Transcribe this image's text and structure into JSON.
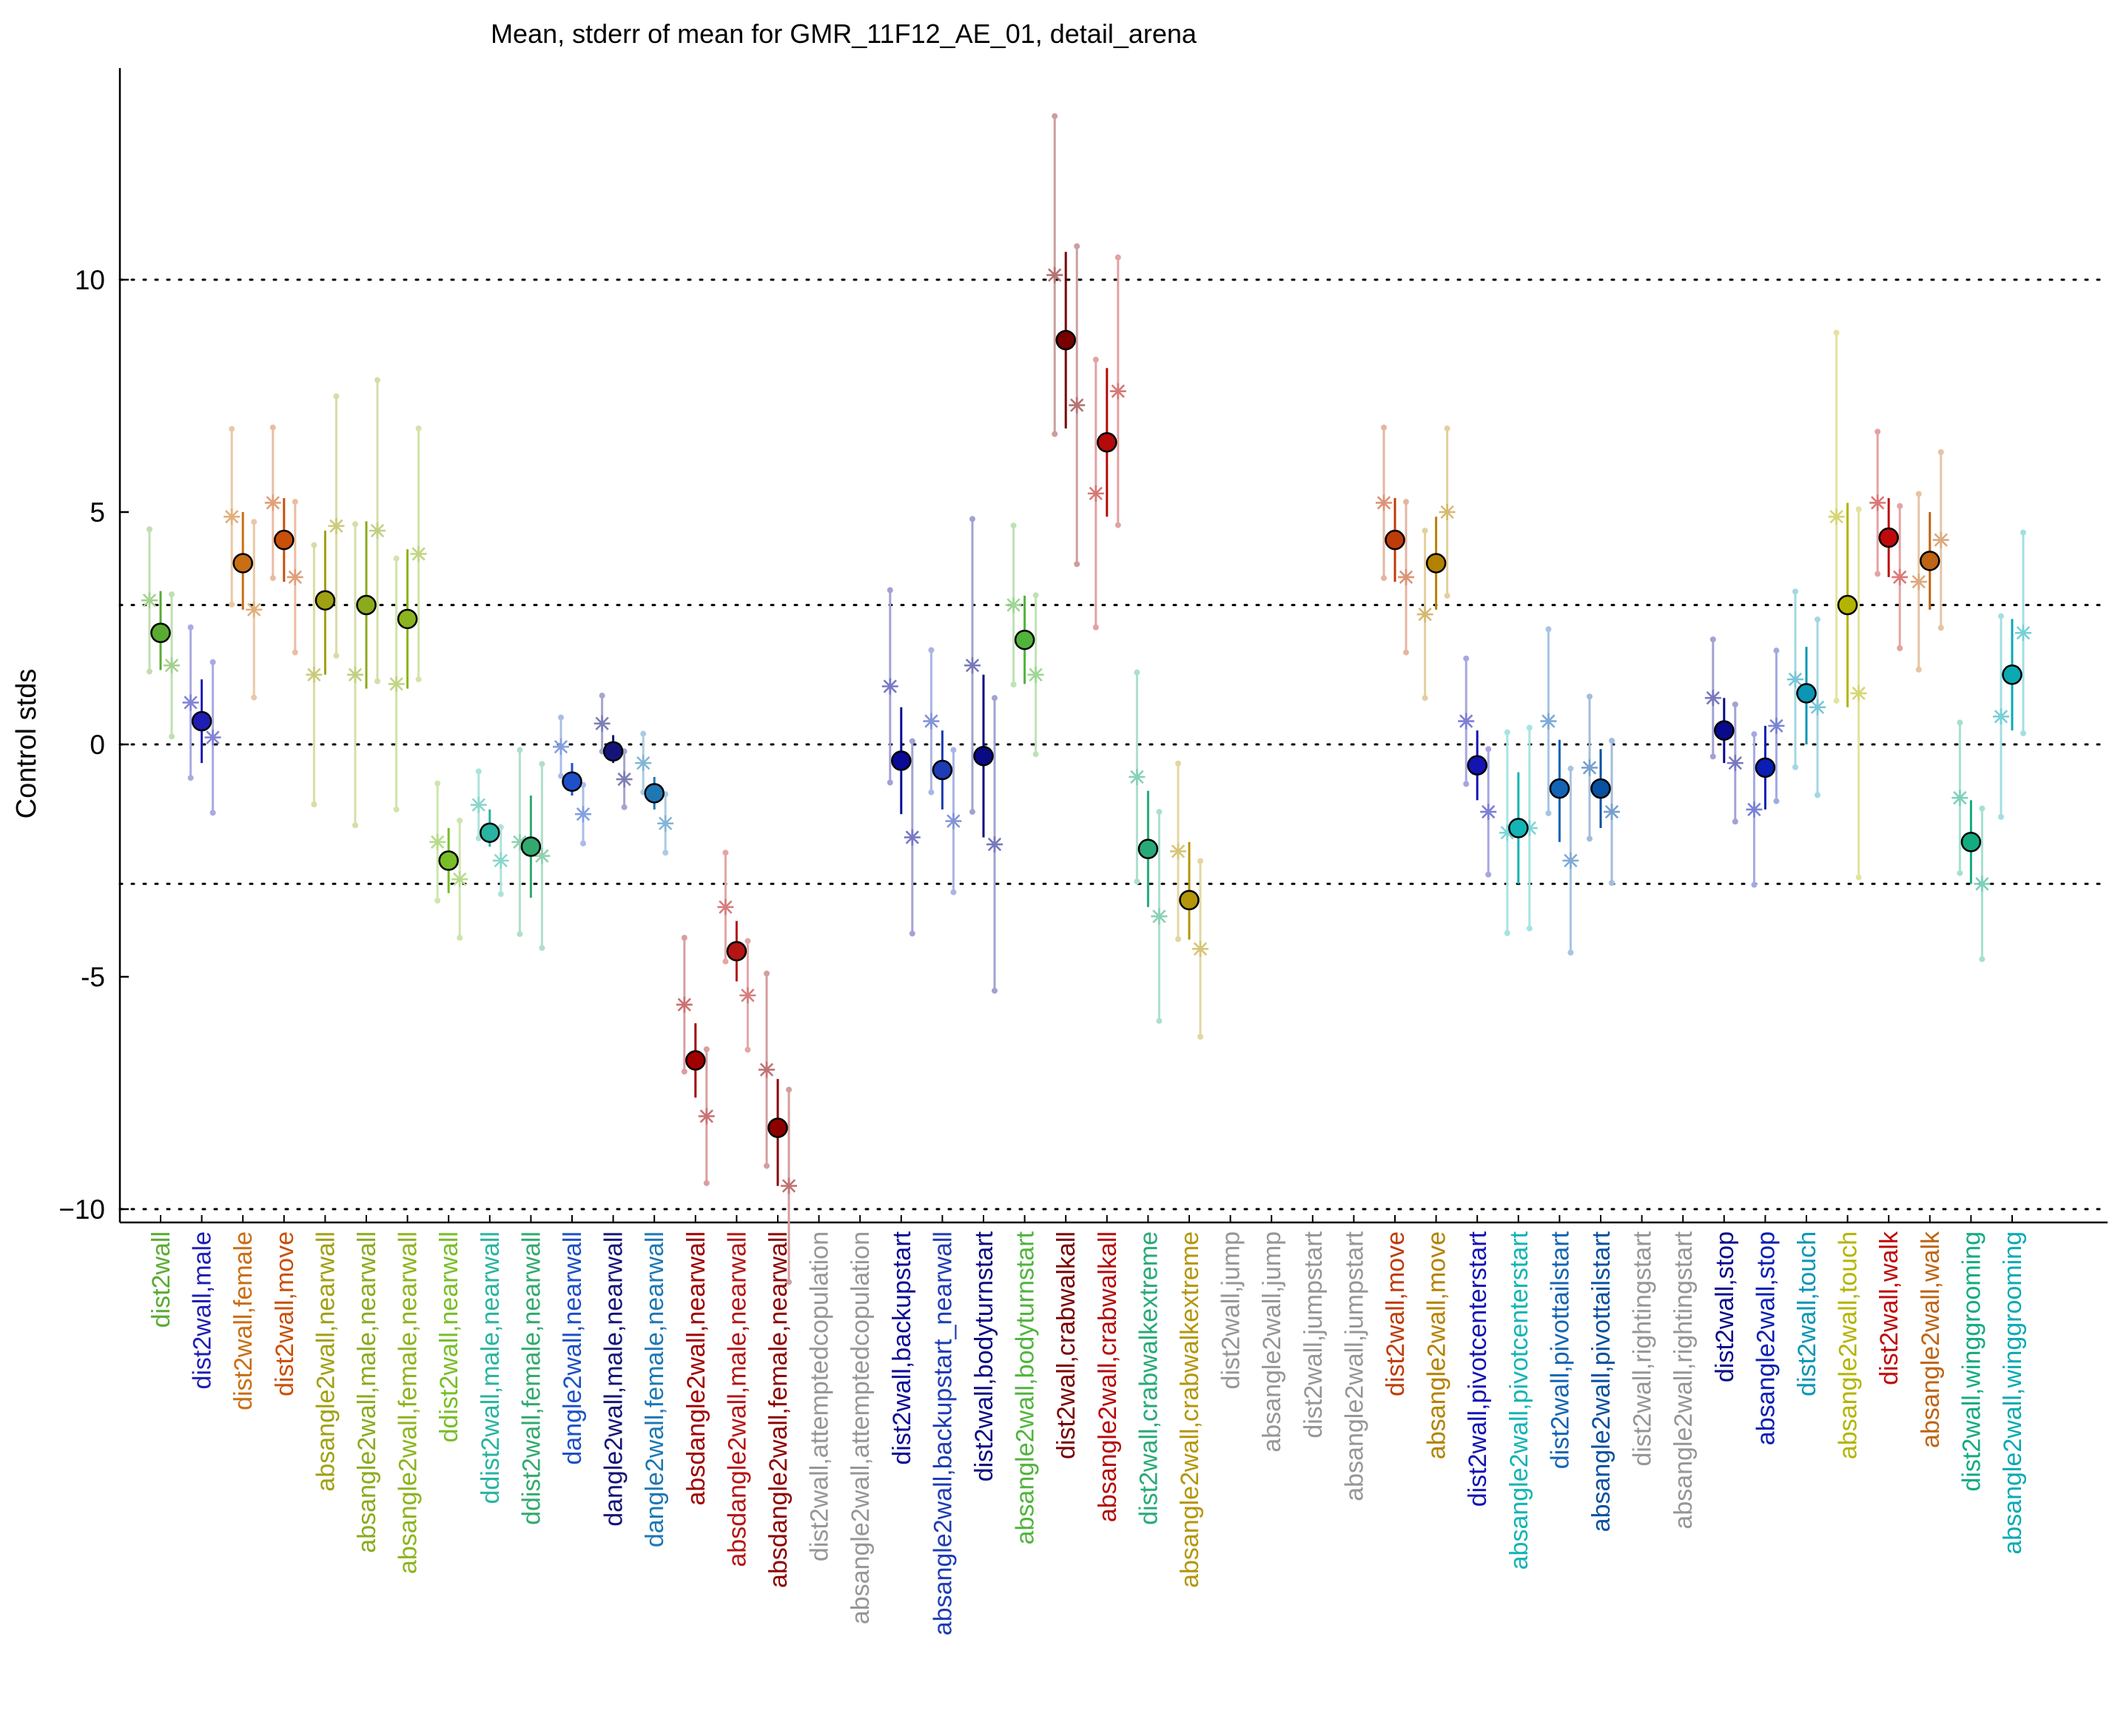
{
  "chart_data": {
    "type": "scatter",
    "title": "Mean, stderr of mean for GMR_11F12_AE_01, detail_arena",
    "xlabel": "",
    "ylabel": "Control stds",
    "ylim": [
      -10.5,
      14.5
    ],
    "yticks": [
      -10,
      -5,
      0,
      5,
      10
    ],
    "ytick_labels": [
      "−10",
      "-5",
      "0",
      "5",
      "10"
    ],
    "reference_lines": [
      -10,
      -3,
      0,
      3,
      10
    ],
    "grid": false,
    "legend": "none",
    "categories": [
      {
        "label": "dist2wall",
        "color": "#5aab32",
        "mean": 2.4,
        "lo": 1.6,
        "hi": 3.3,
        "t1": 3.1,
        "t2": 1.7,
        "empty": false
      },
      {
        "label": "dist2wall,male",
        "color": "#1e1eb4",
        "mean": 0.5,
        "lo": -0.4,
        "hi": 1.4,
        "t1": 0.9,
        "t2": 0.15,
        "empty": false
      },
      {
        "label": "dist2wall,female",
        "color": "#c86e14",
        "mean": 3.9,
        "lo": 2.9,
        "hi": 5.0,
        "t1": 4.9,
        "t2": 2.9,
        "empty": false
      },
      {
        "label": "dist2wall,move",
        "color": "#c8500a",
        "mean": 4.4,
        "lo": 3.5,
        "hi": 5.3,
        "t1": 5.2,
        "t2": 3.6,
        "empty": false
      },
      {
        "label": "absangle2wall,nearwall",
        "color": "#a0a014",
        "mean": 3.1,
        "lo": 1.5,
        "hi": 4.6,
        "t1": 1.5,
        "t2": 4.7,
        "empty": false
      },
      {
        "label": "absangle2wall,male,nearwall",
        "color": "#8caa1e",
        "mean": 3.0,
        "lo": 1.2,
        "hi": 4.8,
        "t1": 1.5,
        "t2": 4.6,
        "empty": false
      },
      {
        "label": "absangle2wall,female,nearwall",
        "color": "#8cb41e",
        "mean": 2.7,
        "lo": 1.2,
        "hi": 4.2,
        "t1": 1.3,
        "t2": 4.1,
        "empty": false
      },
      {
        "label": "ddist2wall,nearwall",
        "color": "#78be28",
        "mean": -2.5,
        "lo": -3.2,
        "hi": -1.8,
        "t1": -2.1,
        "t2": -2.9,
        "empty": false
      },
      {
        "label": "ddist2wall,male,nearwall",
        "color": "#28b4a0",
        "mean": -1.9,
        "lo": -2.2,
        "hi": -1.4,
        "t1": -1.3,
        "t2": -2.5,
        "empty": false
      },
      {
        "label": "ddist2wall,female,nearwall",
        "color": "#32aa6e",
        "mean": -2.2,
        "lo": -3.3,
        "hi": -1.1,
        "t1": -2.1,
        "t2": -2.4,
        "empty": false
      },
      {
        "label": "dangle2wall,nearwall",
        "color": "#1e50c8",
        "mean": -0.8,
        "lo": -1.1,
        "hi": -0.4,
        "t1": -0.05,
        "t2": -1.5,
        "empty": false
      },
      {
        "label": "dangle2wall,male,nearwall",
        "color": "#141478",
        "mean": -0.15,
        "lo": -0.4,
        "hi": 0.2,
        "t1": 0.45,
        "t2": -0.75,
        "empty": false
      },
      {
        "label": "dangle2wall,female,nearwall",
        "color": "#1e78b4",
        "mean": -1.05,
        "lo": -1.4,
        "hi": -0.7,
        "t1": -0.4,
        "t2": -1.7,
        "empty": false
      },
      {
        "label": "absdangle2wall,nearwall",
        "color": "#a00000",
        "mean": -6.8,
        "lo": -7.6,
        "hi": -6.0,
        "t1": -5.6,
        "t2": -8.0,
        "empty": false
      },
      {
        "label": "absdangle2wall,male,nearwall",
        "color": "#b41414",
        "mean": -4.45,
        "lo": -5.1,
        "hi": -3.8,
        "t1": -3.5,
        "t2": -5.4,
        "empty": false
      },
      {
        "label": "absdangle2wall,female,nearwall",
        "color": "#8c0000",
        "mean": -8.25,
        "lo": -9.5,
        "hi": -7.2,
        "t1": -7.0,
        "t2": -9.5,
        "empty": false
      },
      {
        "label": "dist2wall,attemptedcopulation",
        "color": "#969696",
        "empty": true
      },
      {
        "label": "absangle2wall,attemptedcopulation",
        "color": "#969696",
        "empty": true
      },
      {
        "label": "dist2wall,backupstart",
        "color": "#0a0a96",
        "mean": -0.35,
        "lo": -1.5,
        "hi": 0.8,
        "t1": 1.25,
        "t2": -2.0,
        "empty": false
      },
      {
        "label": "absangle2wall,backupstart_nearwall",
        "color": "#1e3cb4",
        "mean": -0.55,
        "lo": -1.4,
        "hi": 0.3,
        "t1": 0.5,
        "t2": -1.65,
        "empty": false
      },
      {
        "label": "dist2wall,bodyturnstart",
        "color": "#0a0a82",
        "mean": -0.25,
        "lo": -2.0,
        "hi": 1.5,
        "t1": 1.7,
        "t2": -2.15,
        "empty": false
      },
      {
        "label": "absangle2wall,bodyturnstart",
        "color": "#50b43c",
        "mean": 2.25,
        "lo": 1.3,
        "hi": 3.2,
        "t1": 3.0,
        "t2": 1.5,
        "empty": false
      },
      {
        "label": "dist2wall,crabwalkall",
        "color": "#780000",
        "mean": 8.7,
        "lo": 6.8,
        "hi": 10.6,
        "t1": 10.1,
        "t2": 7.3,
        "empty": false
      },
      {
        "label": "absangle2wall,crabwalkall",
        "color": "#b40a0a",
        "mean": 6.5,
        "lo": 4.9,
        "hi": 8.1,
        "t1": 5.4,
        "t2": 7.6,
        "empty": false
      },
      {
        "label": "dist2wall,crabwalkextreme",
        "color": "#28aa78",
        "mean": -2.25,
        "lo": -3.5,
        "hi": -1.0,
        "t1": -0.7,
        "t2": -3.7,
        "empty": false
      },
      {
        "label": "absangle2wall,crabwalkextreme",
        "color": "#b4960a",
        "mean": -3.35,
        "lo": -4.2,
        "hi": -2.1,
        "t1": -2.3,
        "t2": -4.4,
        "empty": false
      },
      {
        "label": "dist2wall,jump",
        "color": "#969696",
        "empty": true
      },
      {
        "label": "absangle2wall,jump",
        "color": "#969696",
        "empty": true
      },
      {
        "label": "dist2wall,jumpstart",
        "color": "#969696",
        "empty": true
      },
      {
        "label": "absangle2wall,jumpstart",
        "color": "#969696",
        "empty": true
      },
      {
        "label": "dist2wall,move",
        "color": "#be3c0a",
        "mean": 4.4,
        "lo": 3.5,
        "hi": 5.3,
        "t1": 5.2,
        "t2": 3.6,
        "empty": false
      },
      {
        "label": "absangle2wall,move",
        "color": "#b48200",
        "mean": 3.9,
        "lo": 2.9,
        "hi": 4.9,
        "t1": 2.8,
        "t2": 5.0,
        "empty": false
      },
      {
        "label": "dist2wall,pivotcenterstart",
        "color": "#1414b4",
        "mean": -0.45,
        "lo": -1.2,
        "hi": 0.3,
        "t1": 0.5,
        "t2": -1.45,
        "empty": false
      },
      {
        "label": "absangle2wall,pivotcenterstart",
        "color": "#14b4b4",
        "mean": -1.8,
        "lo": -3.0,
        "hi": -0.6,
        "t1": -1.9,
        "t2": -1.8,
        "empty": false
      },
      {
        "label": "dist2wall,pivottailstart",
        "color": "#1464b4",
        "mean": -0.95,
        "lo": -2.1,
        "hi": 0.1,
        "t1": 0.5,
        "t2": -2.5,
        "empty": false
      },
      {
        "label": "absangle2wall,pivottailstart",
        "color": "#0a50a0",
        "mean": -0.95,
        "lo": -1.8,
        "hi": -0.1,
        "t1": -0.5,
        "t2": -1.45,
        "empty": false
      },
      {
        "label": "dist2wall,rightingstart",
        "color": "#969696",
        "empty": true
      },
      {
        "label": "absangle2wall,rightingstart",
        "color": "#969696",
        "empty": true
      },
      {
        "label": "dist2wall,stop",
        "color": "#0a0a8c",
        "mean": 0.3,
        "lo": -0.4,
        "hi": 1.0,
        "t1": 1.0,
        "t2": -0.4,
        "empty": false
      },
      {
        "label": "absangle2wall,stop",
        "color": "#0a1eb4",
        "mean": -0.5,
        "lo": -1.4,
        "hi": 0.4,
        "t1": -1.4,
        "t2": 0.4,
        "empty": false
      },
      {
        "label": "dist2wall,touch",
        "color": "#0a96b4",
        "mean": 1.1,
        "lo": 0.0,
        "hi": 2.1,
        "t1": 1.4,
        "t2": 0.8,
        "empty": false
      },
      {
        "label": "absangle2wall,touch",
        "color": "#b4b400",
        "mean": 3.0,
        "lo": 0.8,
        "hi": 5.2,
        "t1": 4.9,
        "t2": 1.1,
        "empty": false
      },
      {
        "label": "dist2wall,walk",
        "color": "#be0a0a",
        "mean": 4.45,
        "lo": 3.6,
        "hi": 5.3,
        "t1": 5.2,
        "t2": 3.6,
        "empty": false
      },
      {
        "label": "absangle2wall,walk",
        "color": "#be6414",
        "mean": 3.95,
        "lo": 2.9,
        "hi": 5.0,
        "t1": 3.5,
        "t2": 4.4,
        "empty": false
      },
      {
        "label": "dist2wall,winggrooming",
        "color": "#14aa82",
        "mean": -2.1,
        "lo": -3.0,
        "hi": -1.2,
        "t1": -1.15,
        "t2": -3.0,
        "empty": false
      },
      {
        "label": "absangle2wall,winggrooming",
        "color": "#0aaab4",
        "mean": 1.5,
        "lo": 0.3,
        "hi": 2.7,
        "t1": 0.6,
        "t2": 2.4,
        "empty": false
      }
    ]
  }
}
